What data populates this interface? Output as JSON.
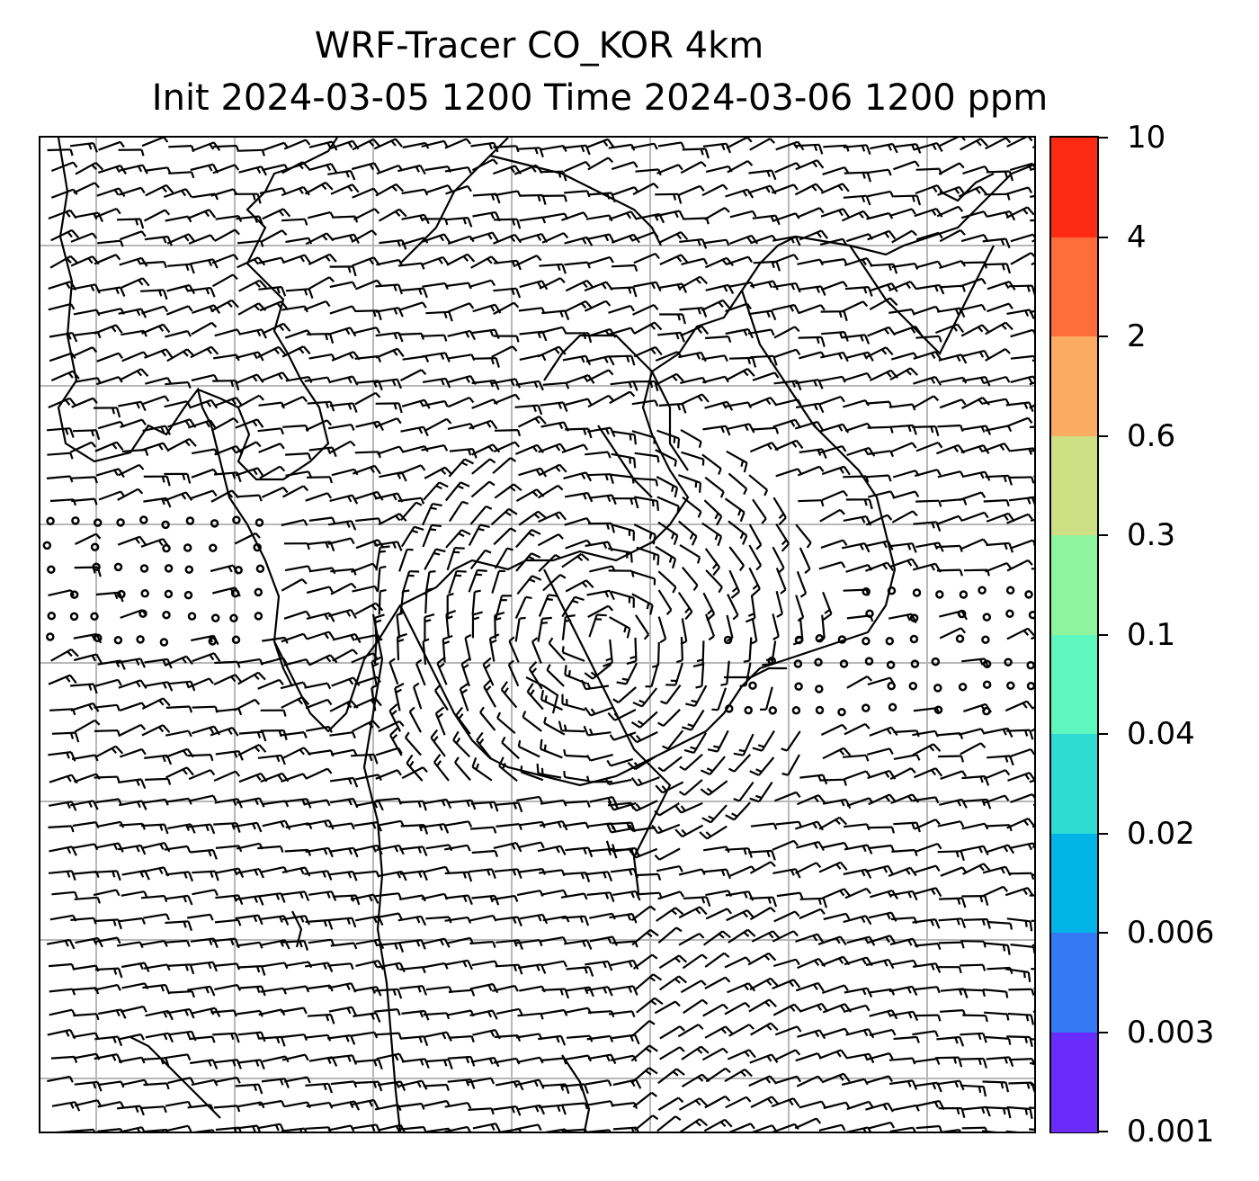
{
  "title": {
    "line1": "WRF-Tracer CO_KOR 4km",
    "line2": "Init 2024-03-05 1200 Time 2024-03-06 1200 ppm"
  },
  "colorbar": {
    "labels": [
      "10",
      "4",
      "2",
      "0.6",
      "0.3",
      "0.1",
      "0.04",
      "0.02",
      "0.006",
      "0.003",
      "0.001"
    ],
    "colors": [
      "#ff2a14",
      "#ff6e3a",
      "#fbab62",
      "#cfe084",
      "#8ef59e",
      "#5ef7c0",
      "#2fdcd4",
      "#00b4e8",
      "#3478f4",
      "#6a2cfa"
    ]
  },
  "map": {
    "wind_barbs": "wind-barb field over Korean peninsula region",
    "gridlines": true,
    "coastlines": true
  }
}
